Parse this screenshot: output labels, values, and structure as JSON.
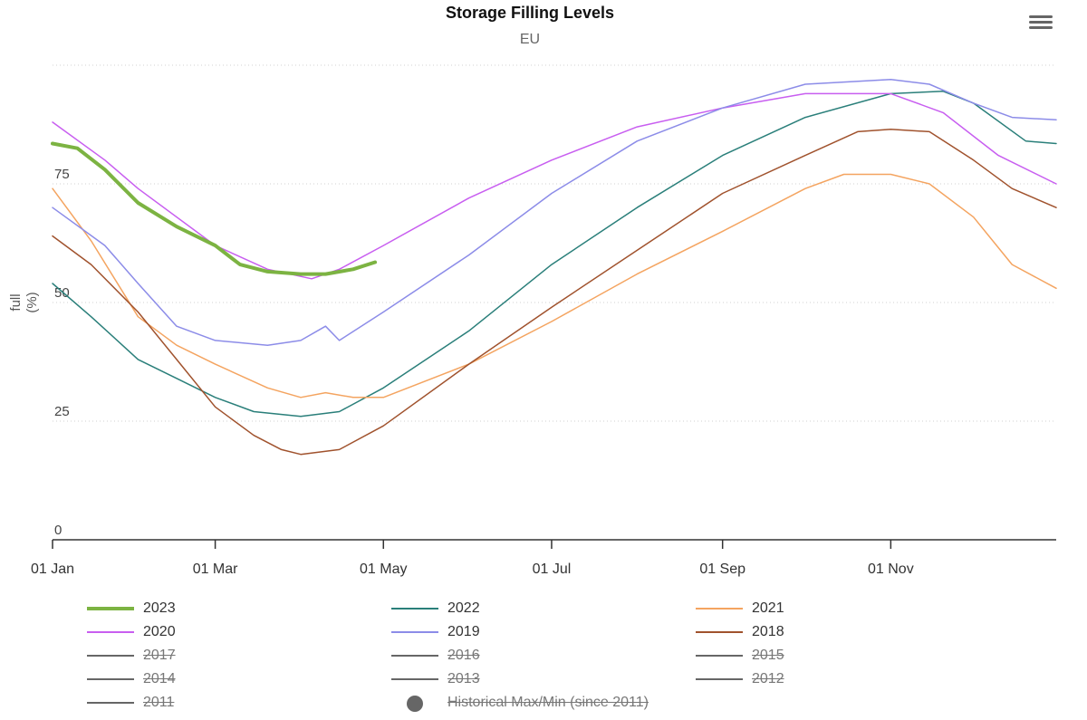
{
  "menu_icon": "hamburger-menu-icon",
  "chart_data": {
    "type": "line",
    "title": "Storage Filling Levels",
    "subtitle": "EU",
    "ylabel": "full\n(%)",
    "xlabel": "",
    "ylim": [
      0,
      100
    ],
    "xlim": [
      "2023-01-01",
      "2023-12-31"
    ],
    "y_ticks": [
      0,
      25,
      50,
      75
    ],
    "x_ticks": [
      {
        "date": "2023-01-01",
        "label": "01 Jan"
      },
      {
        "date": "2023-03-01",
        "label": "01 Mar"
      },
      {
        "date": "2023-05-01",
        "label": "01 May"
      },
      {
        "date": "2023-07-01",
        "label": "01 Jul"
      },
      {
        "date": "2023-09-01",
        "label": "01 Sep"
      },
      {
        "date": "2023-11-01",
        "label": "01 Nov"
      }
    ],
    "grid": "horizontal dotted",
    "legend_position": "bottom",
    "series": [
      {
        "name": "2023",
        "color": "#7cb342",
        "width": 4,
        "visible": true,
        "points": [
          [
            "2023-01-01",
            83.5
          ],
          [
            "2023-01-10",
            82.5
          ],
          [
            "2023-01-20",
            78
          ],
          [
            "2023-02-01",
            71
          ],
          [
            "2023-02-15",
            66
          ],
          [
            "2023-03-01",
            62
          ],
          [
            "2023-03-10",
            58
          ],
          [
            "2023-03-20",
            56.5
          ],
          [
            "2023-04-01",
            56
          ],
          [
            "2023-04-10",
            56
          ],
          [
            "2023-04-20",
            57
          ],
          [
            "2023-04-28",
            58.5
          ]
        ]
      },
      {
        "name": "2022",
        "color": "#2a7f7a",
        "width": 1.5,
        "visible": true,
        "points": [
          [
            "2023-01-01",
            54
          ],
          [
            "2023-01-15",
            47
          ],
          [
            "2023-02-01",
            38
          ],
          [
            "2023-02-15",
            34
          ],
          [
            "2023-03-01",
            30
          ],
          [
            "2023-03-15",
            27
          ],
          [
            "2023-04-01",
            26
          ],
          [
            "2023-04-15",
            27
          ],
          [
            "2023-05-01",
            32
          ],
          [
            "2023-06-01",
            44
          ],
          [
            "2023-07-01",
            58
          ],
          [
            "2023-08-01",
            70
          ],
          [
            "2023-09-01",
            81
          ],
          [
            "2023-10-01",
            89
          ],
          [
            "2023-11-01",
            94
          ],
          [
            "2023-11-20",
            94.5
          ],
          [
            "2023-12-01",
            92
          ],
          [
            "2023-12-20",
            84
          ],
          [
            "2023-12-31",
            83.5
          ]
        ]
      },
      {
        "name": "2021",
        "color": "#f4a460",
        "width": 1.5,
        "visible": true,
        "points": [
          [
            "2023-01-01",
            74
          ],
          [
            "2023-01-15",
            63
          ],
          [
            "2023-02-01",
            47
          ],
          [
            "2023-02-15",
            41
          ],
          [
            "2023-03-01",
            37
          ],
          [
            "2023-03-20",
            32
          ],
          [
            "2023-04-01",
            30
          ],
          [
            "2023-04-10",
            31
          ],
          [
            "2023-04-20",
            30
          ],
          [
            "2023-05-01",
            30
          ],
          [
            "2023-06-01",
            37
          ],
          [
            "2023-07-01",
            46
          ],
          [
            "2023-08-01",
            56
          ],
          [
            "2023-09-01",
            65
          ],
          [
            "2023-10-01",
            74
          ],
          [
            "2023-10-15",
            77
          ],
          [
            "2023-11-01",
            77
          ],
          [
            "2023-11-15",
            75
          ],
          [
            "2023-12-01",
            68
          ],
          [
            "2023-12-15",
            58
          ],
          [
            "2023-12-31",
            53
          ]
        ]
      },
      {
        "name": "2020",
        "color": "#c85ef0",
        "width": 1.5,
        "visible": true,
        "points": [
          [
            "2023-01-01",
            88
          ],
          [
            "2023-01-20",
            80
          ],
          [
            "2023-02-01",
            74
          ],
          [
            "2023-03-01",
            62
          ],
          [
            "2023-03-20",
            57
          ],
          [
            "2023-04-05",
            55
          ],
          [
            "2023-04-15",
            57
          ],
          [
            "2023-05-01",
            62
          ],
          [
            "2023-06-01",
            72
          ],
          [
            "2023-07-01",
            80
          ],
          [
            "2023-08-01",
            87
          ],
          [
            "2023-09-01",
            91
          ],
          [
            "2023-10-01",
            94
          ],
          [
            "2023-11-01",
            94
          ],
          [
            "2023-11-20",
            90
          ],
          [
            "2023-12-10",
            81
          ],
          [
            "2023-12-31",
            75
          ]
        ]
      },
      {
        "name": "2019",
        "color": "#8c8ce8",
        "width": 1.5,
        "visible": true,
        "points": [
          [
            "2023-01-01",
            70
          ],
          [
            "2023-01-20",
            62
          ],
          [
            "2023-02-01",
            54
          ],
          [
            "2023-02-15",
            45
          ],
          [
            "2023-03-01",
            42
          ],
          [
            "2023-03-20",
            41
          ],
          [
            "2023-04-01",
            42
          ],
          [
            "2023-04-10",
            45
          ],
          [
            "2023-04-15",
            42
          ],
          [
            "2023-05-01",
            48
          ],
          [
            "2023-06-01",
            60
          ],
          [
            "2023-07-01",
            73
          ],
          [
            "2023-08-01",
            84
          ],
          [
            "2023-09-01",
            91
          ],
          [
            "2023-10-01",
            96
          ],
          [
            "2023-11-01",
            97
          ],
          [
            "2023-11-15",
            96
          ],
          [
            "2023-12-01",
            92
          ],
          [
            "2023-12-15",
            89
          ],
          [
            "2023-12-31",
            88.5
          ]
        ]
      },
      {
        "name": "2018",
        "color": "#a0522d",
        "width": 1.5,
        "visible": true,
        "points": [
          [
            "2023-01-01",
            64
          ],
          [
            "2023-01-15",
            58
          ],
          [
            "2023-02-01",
            48
          ],
          [
            "2023-02-15",
            38
          ],
          [
            "2023-03-01",
            28
          ],
          [
            "2023-03-15",
            22
          ],
          [
            "2023-03-25",
            19
          ],
          [
            "2023-04-01",
            18
          ],
          [
            "2023-04-15",
            19
          ],
          [
            "2023-05-01",
            24
          ],
          [
            "2023-06-01",
            37
          ],
          [
            "2023-07-01",
            49
          ],
          [
            "2023-08-01",
            61
          ],
          [
            "2023-09-01",
            73
          ],
          [
            "2023-10-01",
            81
          ],
          [
            "2023-10-20",
            86
          ],
          [
            "2023-11-01",
            86.5
          ],
          [
            "2023-11-15",
            86
          ],
          [
            "2023-12-01",
            80
          ],
          [
            "2023-12-15",
            74
          ],
          [
            "2023-12-31",
            70
          ]
        ]
      },
      {
        "name": "2017",
        "color": "#666666",
        "visible": false
      },
      {
        "name": "2016",
        "color": "#666666",
        "visible": false
      },
      {
        "name": "2015",
        "color": "#666666",
        "visible": false
      },
      {
        "name": "2014",
        "color": "#666666",
        "visible": false
      },
      {
        "name": "2013",
        "color": "#666666",
        "visible": false
      },
      {
        "name": "2012",
        "color": "#666666",
        "visible": false
      },
      {
        "name": "2011",
        "color": "#666666",
        "visible": false
      },
      {
        "name": "Historical Max/Min (since 2011)",
        "color": "#666666",
        "symbol": "dot",
        "visible": false
      }
    ]
  }
}
